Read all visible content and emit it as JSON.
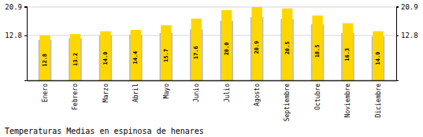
{
  "chart_data": {
    "type": "bar",
    "title": "Temperaturas Medias en espinosa de henares",
    "categories": [
      "Enero",
      "Febrero",
      "Marzo",
      "Abril",
      "Mayo",
      "Junio",
      "Julio",
      "Agosto",
      "Septiembre",
      "Octubre",
      "Noviembre",
      "Diciembre"
    ],
    "series": [
      {
        "color": "#BBBBBB",
        "values": [
          11.5,
          12.0,
          12.8,
          13.0,
          13.5,
          14.5,
          17.0,
          18.0,
          17.5,
          16.0,
          13.5,
          12.5
        ]
      },
      {
        "color": "#FFD700",
        "values": [
          12.8,
          13.2,
          14.0,
          14.4,
          15.7,
          17.6,
          20.0,
          20.9,
          20.5,
          18.5,
          16.3,
          14.0
        ],
        "value_labels": [
          "12.8",
          "13.2",
          "14.0",
          "14.4",
          "15.7",
          "17.6",
          "20.0",
          "20.9",
          "20.5",
          "18.5",
          "16.3",
          "14.0"
        ]
      }
    ],
    "ylim": [
      0,
      21.109
    ],
    "yticks": [
      12.8,
      20.9
    ],
    "y2lim": [
      0,
      21.109
    ],
    "y2ticks": [
      12.8,
      20.9
    ],
    "grid": true,
    "data_labels": true
  }
}
